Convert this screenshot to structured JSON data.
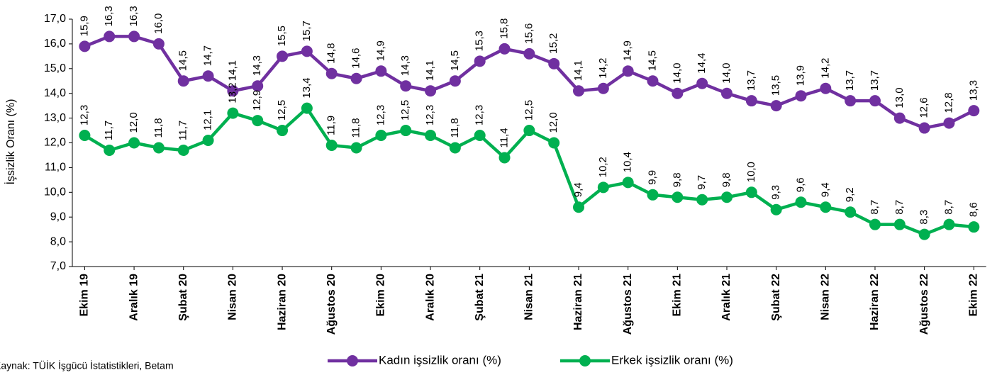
{
  "chart_data": {
    "type": "line",
    "y_label": "İşsizlik Oranı (%)",
    "source": "Kaynak: TÜİK İşgücü İstatistikleri, Betam",
    "categories": [
      "Ekim 19",
      null,
      "Aralık 19",
      null,
      "Şubat 20",
      null,
      "Nisan 20",
      null,
      "Haziran 20",
      null,
      "Ağustos 20",
      null,
      "Ekim 20",
      null,
      "Aralık 20",
      null,
      "Şubat 21",
      null,
      "Nisan 21",
      null,
      "Haziran 21",
      null,
      "Ağustos 21",
      null,
      "Ekim 21",
      null,
      "Aralık 21",
      null,
      "Şubat 22",
      null,
      "Nisan 22",
      null,
      "Haziran 22",
      null,
      "Ağustos 22",
      null,
      "Ekim 22"
    ],
    "series": [
      {
        "name": "Kadın işsizlik oranı (%)",
        "color": "#7030a0",
        "values": [
          15.9,
          16.3,
          16.3,
          16.0,
          14.5,
          14.7,
          14.1,
          14.3,
          15.5,
          15.7,
          14.8,
          14.6,
          14.9,
          14.3,
          14.1,
          14.5,
          15.3,
          15.8,
          15.6,
          15.2,
          14.1,
          14.2,
          14.9,
          14.5,
          14.0,
          14.4,
          14.0,
          13.7,
          13.5,
          13.9,
          14.2,
          13.7,
          13.7,
          13.0,
          12.6,
          12.8,
          13.3
        ],
        "value_labels": [
          "15,9",
          "16,3",
          "16,3",
          "16,0",
          "14,5",
          "14,7",
          "14,1",
          "14,3",
          "15,5",
          "15,7",
          "14,8",
          "14,6",
          "14,9",
          "14,3",
          "14,1",
          "14,5",
          "15,3",
          "15,8",
          "15,6",
          "15,2",
          "14,1",
          "14,2",
          "14,9",
          "14,5",
          "14,0",
          "14,4",
          "14,0",
          "13,7",
          "13,5",
          "13,9",
          "14,2",
          "13,7",
          "13,7",
          "13,0",
          "12,6",
          "12,8",
          "13,3"
        ]
      },
      {
        "name": "Erkek işsizlik oranı (%)",
        "color": "#00b050",
        "values": [
          12.3,
          11.7,
          12.0,
          11.8,
          11.7,
          12.1,
          13.2,
          12.9,
          12.5,
          13.4,
          11.9,
          11.8,
          12.3,
          12.5,
          12.3,
          11.8,
          12.3,
          11.4,
          12.5,
          12.0,
          9.4,
          10.2,
          10.4,
          9.9,
          9.8,
          9.7,
          9.8,
          10.0,
          9.3,
          9.6,
          9.4,
          9.2,
          8.7,
          8.7,
          8.3,
          8.7,
          8.6
        ],
        "value_labels": [
          "12,3",
          "11,7",
          "12,0",
          "11,8",
          "11,7",
          "12,1",
          "13,2",
          "12,9",
          "12,5",
          "13,4",
          "11,9",
          "11,8",
          "12,3",
          "12,5",
          "12,3",
          "11,8",
          "12,3",
          "11,4",
          "12,5",
          "12,0",
          "9,4",
          "10,2",
          "10,4",
          "9,9",
          "9,8",
          "9,7",
          "9,8",
          "10,0",
          "9,3",
          "9,6",
          "9,4",
          "9,2",
          "8,7",
          "8,7",
          "8,3",
          "8,7",
          "8,6"
        ]
      }
    ],
    "ylim": [
      7,
      17
    ],
    "yticks": [
      {
        "value": 7,
        "label": "7,0"
      },
      {
        "value": 8,
        "label": "8,0"
      },
      {
        "value": 9,
        "label": "9,0"
      },
      {
        "value": 10,
        "label": "10,0"
      },
      {
        "value": 11,
        "label": "11,0"
      },
      {
        "value": 12,
        "label": "12,0"
      },
      {
        "value": 13,
        "label": "13,0"
      },
      {
        "value": 14,
        "label": "14,0"
      },
      {
        "value": 15,
        "label": "15,0"
      },
      {
        "value": 16,
        "label": "16,0"
      },
      {
        "value": 17,
        "label": "17,0"
      }
    ],
    "grid": false,
    "legend": "bottom"
  }
}
